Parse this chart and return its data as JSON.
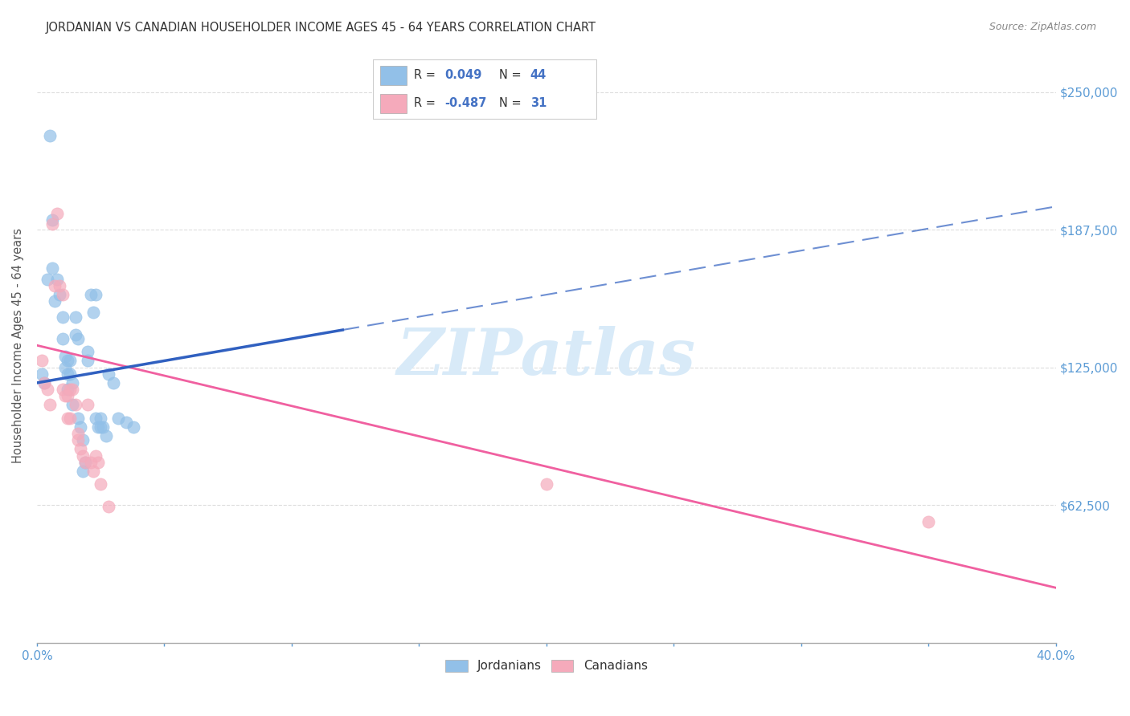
{
  "title": "JORDANIAN VS CANADIAN HOUSEHOLDER INCOME AGES 45 - 64 YEARS CORRELATION CHART",
  "source": "Source: ZipAtlas.com",
  "ylabel": "Householder Income Ages 45 - 64 years",
  "ytick_labels": [
    "$62,500",
    "$125,000",
    "$187,500",
    "$250,000"
  ],
  "ytick_values": [
    62500,
    125000,
    187500,
    250000
  ],
  "ymin": 0,
  "ymax": 270000,
  "xmin": 0.0,
  "xmax": 0.4,
  "blue_color": "#92C0E8",
  "pink_color": "#F5AABB",
  "blue_line_color": "#3060C0",
  "pink_line_color": "#F060A0",
  "watermark": "ZIPatlas",
  "watermark_color": "#D8EAF8",
  "jordanian_points": [
    [
      0.002,
      122000
    ],
    [
      0.003,
      118000
    ],
    [
      0.004,
      165000
    ],
    [
      0.005,
      230000
    ],
    [
      0.006,
      192000
    ],
    [
      0.006,
      170000
    ],
    [
      0.007,
      155000
    ],
    [
      0.008,
      165000
    ],
    [
      0.009,
      158000
    ],
    [
      0.01,
      148000
    ],
    [
      0.01,
      138000
    ],
    [
      0.011,
      130000
    ],
    [
      0.011,
      125000
    ],
    [
      0.012,
      128000
    ],
    [
      0.012,
      122000
    ],
    [
      0.012,
      115000
    ],
    [
      0.013,
      128000
    ],
    [
      0.013,
      122000
    ],
    [
      0.014,
      118000
    ],
    [
      0.014,
      108000
    ],
    [
      0.015,
      148000
    ],
    [
      0.015,
      140000
    ],
    [
      0.016,
      138000
    ],
    [
      0.016,
      102000
    ],
    [
      0.017,
      98000
    ],
    [
      0.018,
      92000
    ],
    [
      0.018,
      78000
    ],
    [
      0.019,
      82000
    ],
    [
      0.02,
      132000
    ],
    [
      0.02,
      128000
    ],
    [
      0.021,
      158000
    ],
    [
      0.022,
      150000
    ],
    [
      0.023,
      158000
    ],
    [
      0.023,
      102000
    ],
    [
      0.024,
      98000
    ],
    [
      0.025,
      102000
    ],
    [
      0.025,
      98000
    ],
    [
      0.026,
      98000
    ],
    [
      0.027,
      94000
    ],
    [
      0.028,
      122000
    ],
    [
      0.03,
      118000
    ],
    [
      0.032,
      102000
    ],
    [
      0.035,
      100000
    ],
    [
      0.038,
      98000
    ]
  ],
  "canadian_points": [
    [
      0.002,
      128000
    ],
    [
      0.003,
      118000
    ],
    [
      0.004,
      115000
    ],
    [
      0.005,
      108000
    ],
    [
      0.006,
      190000
    ],
    [
      0.007,
      162000
    ],
    [
      0.008,
      195000
    ],
    [
      0.009,
      162000
    ],
    [
      0.01,
      158000
    ],
    [
      0.01,
      115000
    ],
    [
      0.011,
      112000
    ],
    [
      0.012,
      112000
    ],
    [
      0.012,
      102000
    ],
    [
      0.013,
      115000
    ],
    [
      0.013,
      102000
    ],
    [
      0.014,
      115000
    ],
    [
      0.015,
      108000
    ],
    [
      0.016,
      95000
    ],
    [
      0.016,
      92000
    ],
    [
      0.017,
      88000
    ],
    [
      0.018,
      85000
    ],
    [
      0.019,
      82000
    ],
    [
      0.02,
      108000
    ],
    [
      0.021,
      82000
    ],
    [
      0.022,
      78000
    ],
    [
      0.023,
      85000
    ],
    [
      0.024,
      82000
    ],
    [
      0.025,
      72000
    ],
    [
      0.028,
      62000
    ],
    [
      0.2,
      72000
    ],
    [
      0.35,
      55000
    ]
  ],
  "blue_line_solid_end": 0.12,
  "blue_line_intercept": 118000,
  "blue_line_slope": 200000,
  "pink_line_intercept": 135000,
  "pink_line_slope": -275000
}
